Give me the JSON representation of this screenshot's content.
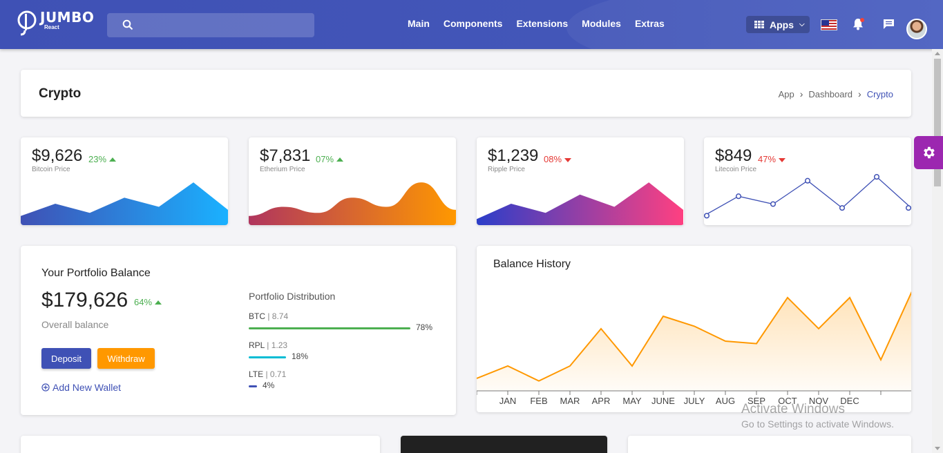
{
  "header": {
    "logo_name": "JUMBO",
    "logo_sub": "React",
    "search_icon": "search-icon",
    "nav": [
      "Main",
      "Components",
      "Extensions",
      "Modules",
      "Extras"
    ],
    "apps_label": "Apps",
    "icons": [
      "flag-us-icon",
      "bell-icon",
      "chat-icon",
      "avatar"
    ]
  },
  "page": {
    "title": "Crypto",
    "breadcrumb": [
      "App",
      "Dashboard",
      "Crypto"
    ]
  },
  "price_cards": [
    {
      "value": "$9,626",
      "change": "23%",
      "direction": "up",
      "label": "Bitcoin Price",
      "series": [
        3,
        7,
        4,
        9,
        6,
        14,
        5
      ],
      "gradient": [
        "#3f51b5",
        "#1ab1ff"
      ]
    },
    {
      "value": "$7,831",
      "change": "07%",
      "direction": "up",
      "label": "Etherium Price",
      "series": [
        3,
        6,
        4,
        9,
        6,
        14,
        5
      ],
      "gradient": [
        "#b0355e",
        "#ff9800"
      ]
    },
    {
      "value": "$1,239",
      "change": "08%",
      "direction": "down",
      "label": "Ripple Price",
      "series": [
        2,
        7,
        4,
        10,
        6,
        14,
        5
      ],
      "gradient": [
        "#2b3ec9",
        "#ff4081"
      ]
    },
    {
      "value": "$849",
      "change": "47%",
      "direction": "down",
      "label": "Litecoin Price",
      "series": [
        1,
        6,
        4,
        10,
        3,
        11,
        3
      ],
      "gradient": [
        "#3f51b5",
        "#3f51b5"
      ]
    }
  ],
  "portfolio": {
    "title": "Your Portfolio Balance",
    "balance": "$179,626",
    "change": "64%",
    "balance_label": "Overall balance",
    "deposit": "Deposit",
    "withdraw": "Withdraw",
    "add_wallet": "Add New Wallet",
    "distribution_title": "Portfolio Distribution",
    "distribution": [
      {
        "coin": "BTC",
        "amount": "8.74",
        "percent": "78%",
        "fraction": 0.78,
        "color": "#4caf50"
      },
      {
        "coin": "RPL",
        "amount": "1.23",
        "percent": "18%",
        "fraction": 0.18,
        "color": "#00bcd4"
      },
      {
        "coin": "LTE",
        "amount": "0.71",
        "percent": "4%",
        "fraction": 0.04,
        "color": "#3f51b5"
      }
    ]
  },
  "balance_history": {
    "title": "Balance History"
  },
  "chart_data": {
    "type": "area",
    "title": "Balance History",
    "categories": [
      "",
      "JAN",
      "FEB",
      "MAR",
      "APR",
      "MAY",
      "JUNE",
      "JULY",
      "AUG",
      "SEP",
      "OCT",
      "NOV",
      "DEC",
      "",
      ""
    ],
    "values": [
      1.0,
      2.0,
      0.8,
      2.0,
      5.0,
      2.0,
      6.0,
      5.2,
      4.0,
      3.8,
      7.5,
      5.0,
      7.5,
      2.5,
      8.0
    ],
    "ylim": [
      0,
      10
    ],
    "color": "#ff9800",
    "grid": false
  },
  "watermark": {
    "line1": "Activate Windows",
    "line2": "Go to Settings to activate Windows."
  }
}
